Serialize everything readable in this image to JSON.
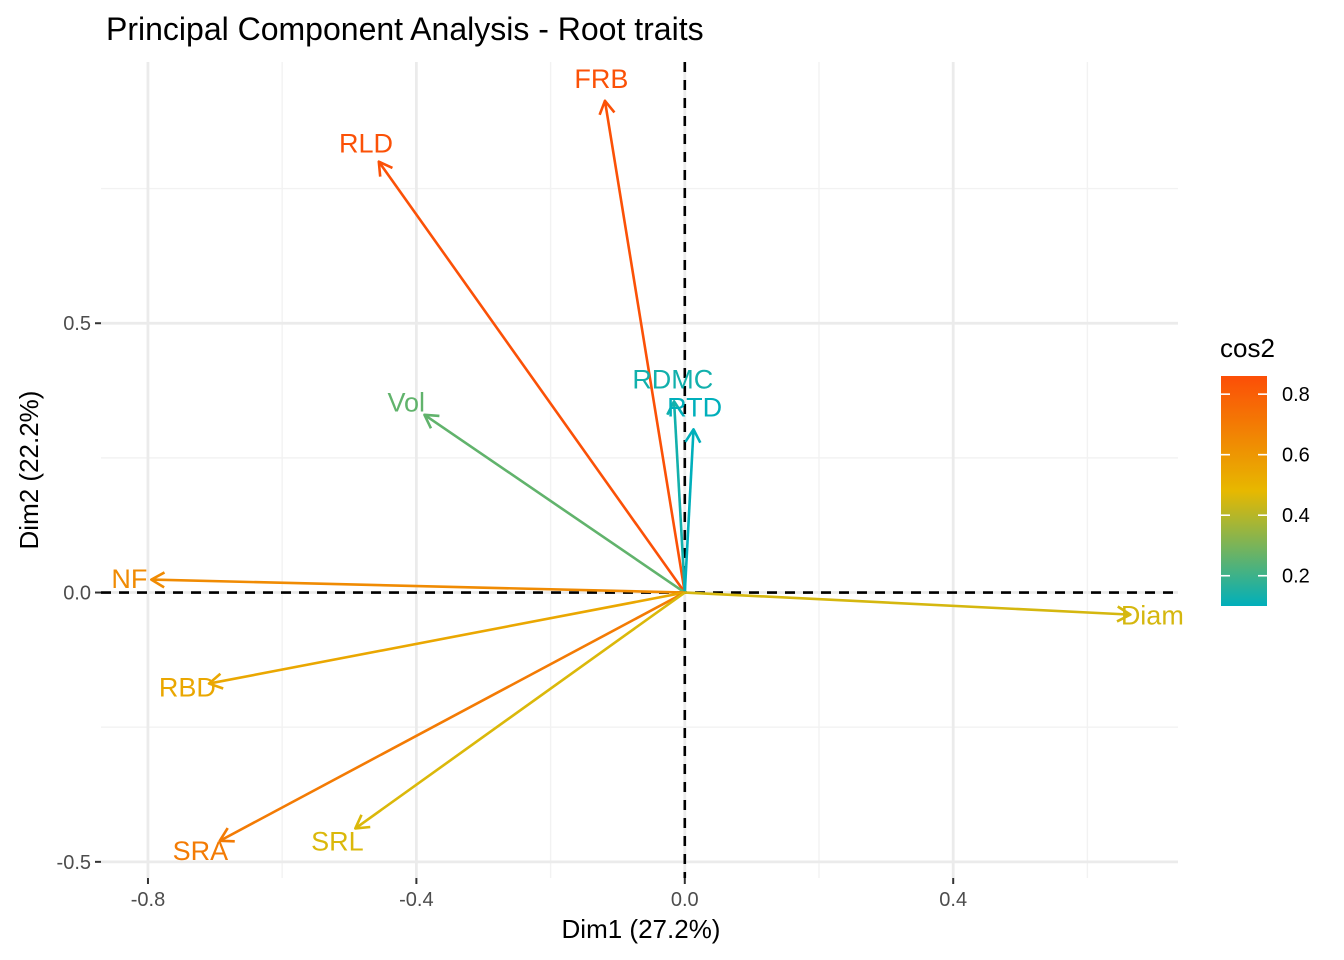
{
  "chart_data": {
    "type": "vector",
    "title": "Principal Component Analysis - Root traits",
    "xlabel": "Dim1 (27.2%)",
    "ylabel": "Dim2 (22.2%)",
    "xlim": [
      -0.87,
      0.735
    ],
    "ylim": [
      -0.53,
      0.985
    ],
    "x_ticks": [
      -0.8,
      -0.4,
      0.0,
      0.4
    ],
    "x_tick_labels": [
      "-0.8",
      "-0.4",
      "0.0",
      "0.4"
    ],
    "y_ticks": [
      -0.5,
      0.0,
      0.5
    ],
    "y_tick_labels": [
      "-0.5",
      "0.0",
      "0.5"
    ],
    "grid": true,
    "reference_lines": {
      "x": 0,
      "y": 0,
      "style": "dashed"
    },
    "legend": {
      "title": "cos2",
      "position": "right",
      "range": [
        0.1,
        0.86
      ],
      "ticks": [
        0.2,
        0.4,
        0.6,
        0.8
      ],
      "tick_labels": [
        "0.2",
        "0.4",
        "0.6",
        "0.8"
      ],
      "colors": [
        "#00AFBB",
        "#E7B800",
        "#FC4E07"
      ]
    },
    "variables": [
      {
        "name": "RLD",
        "x": -0.456,
        "y": 0.8,
        "cos2": 0.85
      },
      {
        "name": "FRB",
        "x": -0.119,
        "y": 0.913,
        "cos2": 0.85
      },
      {
        "name": "Vol",
        "x": -0.388,
        "y": 0.33,
        "cos2": 0.26
      },
      {
        "name": "RDMC",
        "x": -0.016,
        "y": 0.355,
        "cos2": 0.13
      },
      {
        "name": "RTD",
        "x": 0.013,
        "y": 0.303,
        "cos2": 0.1
      },
      {
        "name": "Diam",
        "x": 0.664,
        "y": -0.041,
        "cos2": 0.45
      },
      {
        "name": "NF",
        "x": -0.795,
        "y": 0.024,
        "cos2": 0.64
      },
      {
        "name": "RBD",
        "x": -0.709,
        "y": -0.169,
        "cos2": 0.54
      },
      {
        "name": "SRA",
        "x": -0.693,
        "y": -0.461,
        "cos2": 0.7
      },
      {
        "name": "SRL",
        "x": -0.491,
        "y": -0.438,
        "cos2": 0.46
      }
    ]
  }
}
